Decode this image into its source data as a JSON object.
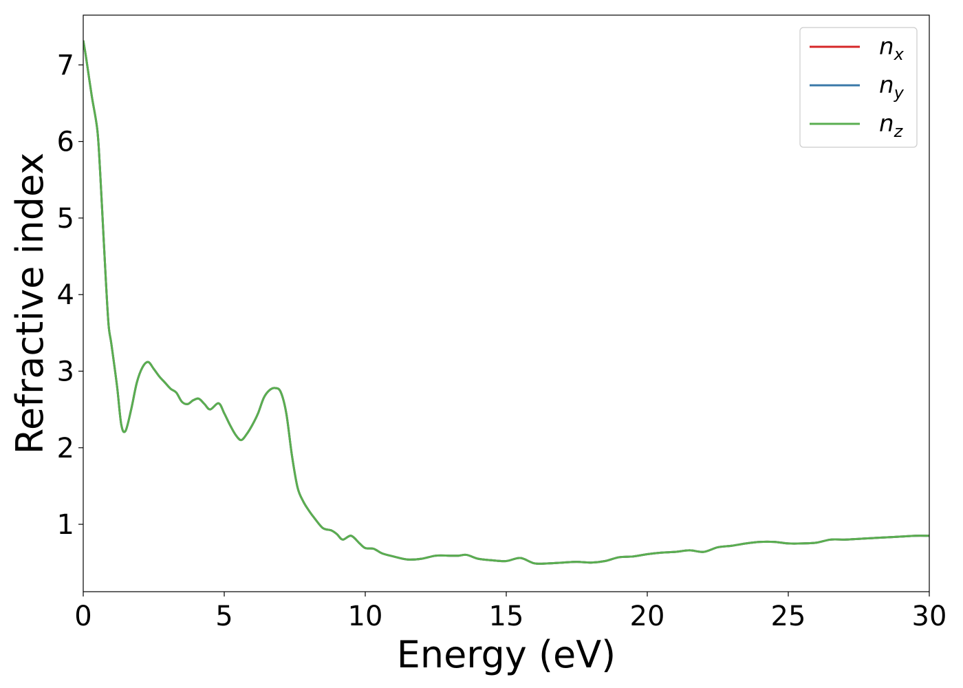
{
  "chart_data": {
    "type": "line",
    "title": "",
    "xlabel": "Energy (eV)",
    "ylabel": "Refractive index",
    "xlim": [
      0,
      30
    ],
    "ylim": [
      0.12,
      7.65
    ],
    "xticks": [
      0,
      5,
      10,
      15,
      20,
      25,
      30
    ],
    "yticks": [
      1,
      2,
      3,
      4,
      5,
      6,
      7
    ],
    "grid": false,
    "legend": {
      "position": "top-right",
      "entries": [
        {
          "base": "n",
          "sub": "x",
          "color": "#d62728"
        },
        {
          "base": "n",
          "sub": "y",
          "color": "#3a78a8"
        },
        {
          "base": "n",
          "sub": "z",
          "color": "#5aae50"
        }
      ]
    },
    "x": [
      0.0,
      0.1,
      0.3,
      0.5,
      0.6,
      0.7,
      0.8,
      0.9,
      1.0,
      1.2,
      1.35,
      1.5,
      1.7,
      1.9,
      2.1,
      2.3,
      2.5,
      2.7,
      2.9,
      3.1,
      3.3,
      3.5,
      3.7,
      3.9,
      4.1,
      4.3,
      4.5,
      4.8,
      5.0,
      5.2,
      5.4,
      5.6,
      5.8,
      6.0,
      6.2,
      6.4,
      6.6,
      6.8,
      7.0,
      7.2,
      7.4,
      7.6,
      7.8,
      8.0,
      8.2,
      8.5,
      8.8,
      9.0,
      9.2,
      9.5,
      9.8,
      10.0,
      10.3,
      10.6,
      11.0,
      11.5,
      12.0,
      12.5,
      13.0,
      13.3,
      13.6,
      14.0,
      14.5,
      15.0,
      15.5,
      16.0,
      16.5,
      17.0,
      17.5,
      18.0,
      18.5,
      19.0,
      19.5,
      20.0,
      20.5,
      21.0,
      21.5,
      22.0,
      22.5,
      23.0,
      23.5,
      24.0,
      24.5,
      25.0,
      25.5,
      26.0,
      26.5,
      27.0,
      27.5,
      28.0,
      28.5,
      29.0,
      29.5,
      30.0
    ],
    "series": [
      {
        "name": "n_x",
        "values": [
          7.32,
          7.1,
          6.6,
          6.15,
          5.6,
          4.9,
          4.2,
          3.6,
          3.35,
          2.8,
          2.3,
          2.22,
          2.5,
          2.85,
          3.05,
          3.12,
          3.03,
          2.93,
          2.85,
          2.77,
          2.72,
          2.6,
          2.57,
          2.62,
          2.64,
          2.57,
          2.5,
          2.58,
          2.45,
          2.3,
          2.17,
          2.1,
          2.18,
          2.3,
          2.45,
          2.65,
          2.75,
          2.78,
          2.73,
          2.45,
          1.9,
          1.48,
          1.3,
          1.18,
          1.08,
          0.95,
          0.92,
          0.87,
          0.8,
          0.85,
          0.75,
          0.69,
          0.68,
          0.62,
          0.58,
          0.54,
          0.55,
          0.59,
          0.59,
          0.59,
          0.6,
          0.55,
          0.53,
          0.52,
          0.56,
          0.49,
          0.49,
          0.5,
          0.51,
          0.5,
          0.52,
          0.57,
          0.58,
          0.61,
          0.63,
          0.64,
          0.66,
          0.64,
          0.7,
          0.72,
          0.75,
          0.77,
          0.77,
          0.75,
          0.75,
          0.76,
          0.8,
          0.8,
          0.81,
          0.82,
          0.83,
          0.84,
          0.85,
          0.85
        ]
      },
      {
        "name": "n_y",
        "values": [
          7.32,
          7.1,
          6.6,
          6.15,
          5.6,
          4.9,
          4.2,
          3.6,
          3.35,
          2.8,
          2.3,
          2.22,
          2.5,
          2.85,
          3.05,
          3.12,
          3.03,
          2.93,
          2.85,
          2.77,
          2.72,
          2.6,
          2.57,
          2.62,
          2.64,
          2.57,
          2.5,
          2.58,
          2.45,
          2.3,
          2.17,
          2.1,
          2.18,
          2.3,
          2.45,
          2.65,
          2.75,
          2.78,
          2.73,
          2.45,
          1.9,
          1.48,
          1.3,
          1.18,
          1.08,
          0.95,
          0.92,
          0.87,
          0.8,
          0.85,
          0.75,
          0.69,
          0.68,
          0.62,
          0.58,
          0.54,
          0.55,
          0.59,
          0.59,
          0.59,
          0.6,
          0.55,
          0.53,
          0.52,
          0.56,
          0.49,
          0.49,
          0.5,
          0.51,
          0.5,
          0.52,
          0.57,
          0.58,
          0.61,
          0.63,
          0.64,
          0.66,
          0.64,
          0.7,
          0.72,
          0.75,
          0.77,
          0.77,
          0.75,
          0.75,
          0.76,
          0.8,
          0.8,
          0.81,
          0.82,
          0.83,
          0.84,
          0.85,
          0.85
        ]
      },
      {
        "name": "n_z",
        "values": [
          7.32,
          7.1,
          6.6,
          6.15,
          5.6,
          4.9,
          4.2,
          3.6,
          3.35,
          2.8,
          2.3,
          2.22,
          2.5,
          2.85,
          3.05,
          3.12,
          3.03,
          2.93,
          2.85,
          2.77,
          2.72,
          2.6,
          2.57,
          2.62,
          2.64,
          2.57,
          2.5,
          2.58,
          2.45,
          2.3,
          2.17,
          2.1,
          2.18,
          2.3,
          2.45,
          2.65,
          2.75,
          2.78,
          2.73,
          2.45,
          1.9,
          1.48,
          1.3,
          1.18,
          1.08,
          0.95,
          0.92,
          0.87,
          0.8,
          0.85,
          0.75,
          0.69,
          0.68,
          0.62,
          0.58,
          0.54,
          0.55,
          0.59,
          0.59,
          0.59,
          0.6,
          0.55,
          0.53,
          0.52,
          0.56,
          0.49,
          0.49,
          0.5,
          0.51,
          0.5,
          0.52,
          0.57,
          0.58,
          0.61,
          0.63,
          0.64,
          0.66,
          0.64,
          0.7,
          0.72,
          0.75,
          0.77,
          0.77,
          0.75,
          0.75,
          0.76,
          0.8,
          0.8,
          0.81,
          0.82,
          0.83,
          0.84,
          0.85,
          0.85
        ]
      }
    ]
  }
}
